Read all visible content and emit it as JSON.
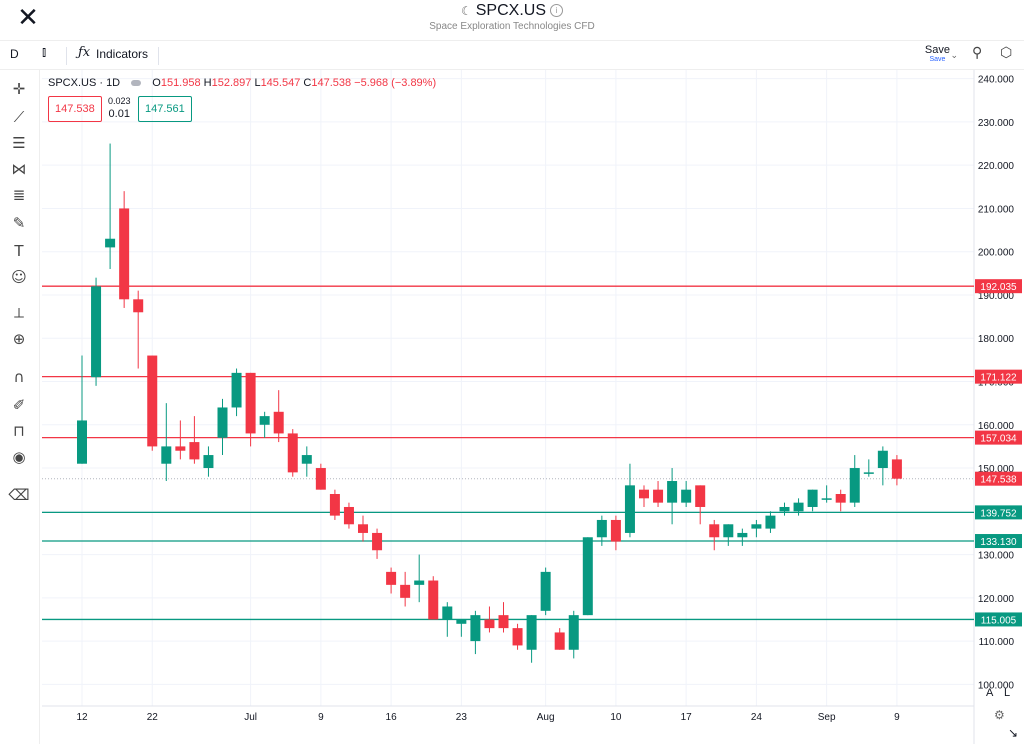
{
  "header": {
    "close_label": "✕",
    "symbol": "SPCX.US",
    "subtitle": "Space Exploration Technologies CFD"
  },
  "toolbar": {
    "interval": "D",
    "indicators_label": "Indicators",
    "save_label": "Save",
    "save_sub": "Save"
  },
  "legend": {
    "symbol_interval": "SPCX.US · 1D",
    "o_label": "O",
    "o": "151.958",
    "h_label": "H",
    "h": "152.897",
    "l_label": "L",
    "l": "145.547",
    "c_label": "C",
    "c": "147.538",
    "change": "−5.968 (−3.89%)"
  },
  "trade": {
    "sell": "147.538",
    "buy": "147.561",
    "spread_top": "0.023",
    "spread_bottom": "0.01"
  },
  "bottom": {
    "auto_label": "A",
    "log_label": "L"
  },
  "colors": {
    "up": "#089981",
    "down": "#f23645",
    "grid": "#f0f3fa",
    "text": "#131722"
  },
  "chart_data": {
    "type": "candlestick",
    "ylim": [
      95,
      242
    ],
    "y_ticks": [
      "100.000",
      "110.000",
      "120.000",
      "130.000",
      "140.000",
      "150.000",
      "160.000",
      "170.000",
      "180.000",
      "190.000",
      "200.000",
      "210.000",
      "220.000",
      "230.000",
      "240.000"
    ],
    "x_ticks": [
      {
        "label": "12",
        "index": 0
      },
      {
        "label": "22",
        "index": 5
      },
      {
        "label": "Jul",
        "index": 12
      },
      {
        "label": "9",
        "index": 17
      },
      {
        "label": "16",
        "index": 22
      },
      {
        "label": "23",
        "index": 27
      },
      {
        "label": "Aug",
        "index": 33
      },
      {
        "label": "10",
        "index": 38
      },
      {
        "label": "17",
        "index": 43
      },
      {
        "label": "24",
        "index": 48
      },
      {
        "label": "Sep",
        "index": 53
      },
      {
        "label": "9",
        "index": 58
      }
    ],
    "candles": [
      {
        "o": 151,
        "h": 176,
        "l": 151,
        "c": 161
      },
      {
        "o": 171,
        "h": 194,
        "l": 169,
        "c": 192
      },
      {
        "o": 201,
        "h": 225,
        "l": 196,
        "c": 203
      },
      {
        "o": 210,
        "h": 214,
        "l": 187,
        "c": 189
      },
      {
        "o": 189,
        "h": 191,
        "l": 173,
        "c": 186
      },
      {
        "o": 176,
        "h": 176,
        "l": 154,
        "c": 155
      },
      {
        "o": 151,
        "h": 165,
        "l": 147,
        "c": 155
      },
      {
        "o": 155,
        "h": 161,
        "l": 152,
        "c": 154
      },
      {
        "o": 156,
        "h": 162,
        "l": 151,
        "c": 152
      },
      {
        "o": 150,
        "h": 155,
        "l": 148,
        "c": 153
      },
      {
        "o": 157,
        "h": 166,
        "l": 153,
        "c": 164
      },
      {
        "o": 164,
        "h": 173,
        "l": 162,
        "c": 172
      },
      {
        "o": 172,
        "h": 172,
        "l": 155,
        "c": 158
      },
      {
        "o": 160,
        "h": 163,
        "l": 157,
        "c": 162
      },
      {
        "o": 163,
        "h": 168,
        "l": 156,
        "c": 158
      },
      {
        "o": 158,
        "h": 159,
        "l": 148,
        "c": 149
      },
      {
        "o": 151,
        "h": 155,
        "l": 148,
        "c": 153
      },
      {
        "o": 150,
        "h": 151,
        "l": 145,
        "c": 145
      },
      {
        "o": 144,
        "h": 145,
        "l": 138,
        "c": 139
      },
      {
        "o": 141,
        "h": 142,
        "l": 136,
        "c": 137
      },
      {
        "o": 137,
        "h": 139,
        "l": 133,
        "c": 135
      },
      {
        "o": 135,
        "h": 136,
        "l": 129,
        "c": 131
      },
      {
        "o": 126,
        "h": 127,
        "l": 121,
        "c": 123
      },
      {
        "o": 123,
        "h": 126,
        "l": 118,
        "c": 120
      },
      {
        "o": 123,
        "h": 130,
        "l": 119,
        "c": 124
      },
      {
        "o": 124,
        "h": 125,
        "l": 115,
        "c": 115
      },
      {
        "o": 115,
        "h": 119,
        "l": 111,
        "c": 118
      },
      {
        "o": 114,
        "h": 115,
        "l": 111,
        "c": 115
      },
      {
        "o": 110,
        "h": 117,
        "l": 107,
        "c": 116
      },
      {
        "o": 115,
        "h": 118,
        "l": 112,
        "c": 113
      },
      {
        "o": 116,
        "h": 119,
        "l": 112,
        "c": 113
      },
      {
        "o": 113,
        "h": 114,
        "l": 108,
        "c": 109
      },
      {
        "o": 108,
        "h": 116,
        "l": 105,
        "c": 116
      },
      {
        "o": 117,
        "h": 127,
        "l": 116,
        "c": 126
      },
      {
        "o": 112,
        "h": 113,
        "l": 108,
        "c": 108
      },
      {
        "o": 108,
        "h": 117,
        "l": 106,
        "c": 116
      },
      {
        "o": 116,
        "h": 134,
        "l": 116,
        "c": 134
      },
      {
        "o": 134,
        "h": 139,
        "l": 132,
        "c": 138
      },
      {
        "o": 138,
        "h": 139,
        "l": 131,
        "c": 133
      },
      {
        "o": 135,
        "h": 151,
        "l": 134,
        "c": 146
      },
      {
        "o": 145,
        "h": 146,
        "l": 141,
        "c": 143
      },
      {
        "o": 145,
        "h": 147,
        "l": 141,
        "c": 142
      },
      {
        "o": 142,
        "h": 150,
        "l": 137,
        "c": 147
      },
      {
        "o": 142,
        "h": 147,
        "l": 141,
        "c": 145
      },
      {
        "o": 146,
        "h": 146,
        "l": 137,
        "c": 141
      },
      {
        "o": 137,
        "h": 138,
        "l": 131,
        "c": 134
      },
      {
        "o": 134,
        "h": 137,
        "l": 132,
        "c": 137
      },
      {
        "o": 134,
        "h": 136,
        "l": 132,
        "c": 135
      },
      {
        "o": 136,
        "h": 138,
        "l": 134,
        "c": 137
      },
      {
        "o": 136,
        "h": 140,
        "l": 135,
        "c": 139
      },
      {
        "o": 140,
        "h": 142,
        "l": 139,
        "c": 141
      },
      {
        "o": 140,
        "h": 143,
        "l": 139,
        "c": 142
      },
      {
        "o": 141,
        "h": 145,
        "l": 140,
        "c": 145
      },
      {
        "o": 143,
        "h": 146,
        "l": 142,
        "c": 143
      },
      {
        "o": 144,
        "h": 145,
        "l": 140,
        "c": 142
      },
      {
        "o": 142,
        "h": 153,
        "l": 141,
        "c": 150
      },
      {
        "o": 149,
        "h": 152,
        "l": 148,
        "c": 149
      },
      {
        "o": 150,
        "h": 155,
        "l": 146,
        "c": 154
      },
      {
        "o": 152,
        "h": 153,
        "l": 146,
        "c": 147.538
      }
    ],
    "hlines": [
      {
        "value": 192.035,
        "label": "192.035",
        "color": "#f23645"
      },
      {
        "value": 171.122,
        "label": "171.122",
        "color": "#f23645"
      },
      {
        "value": 157.034,
        "label": "157.034",
        "color": "#f23645"
      },
      {
        "value": 139.752,
        "label": "139.752",
        "color": "#089981"
      },
      {
        "value": 133.13,
        "label": "133.130",
        "color": "#089981"
      },
      {
        "value": 115.005,
        "label": "115.005",
        "color": "#089981"
      }
    ],
    "last_price": {
      "value": 147.538,
      "label": "147.538",
      "color": "#f23645"
    }
  }
}
